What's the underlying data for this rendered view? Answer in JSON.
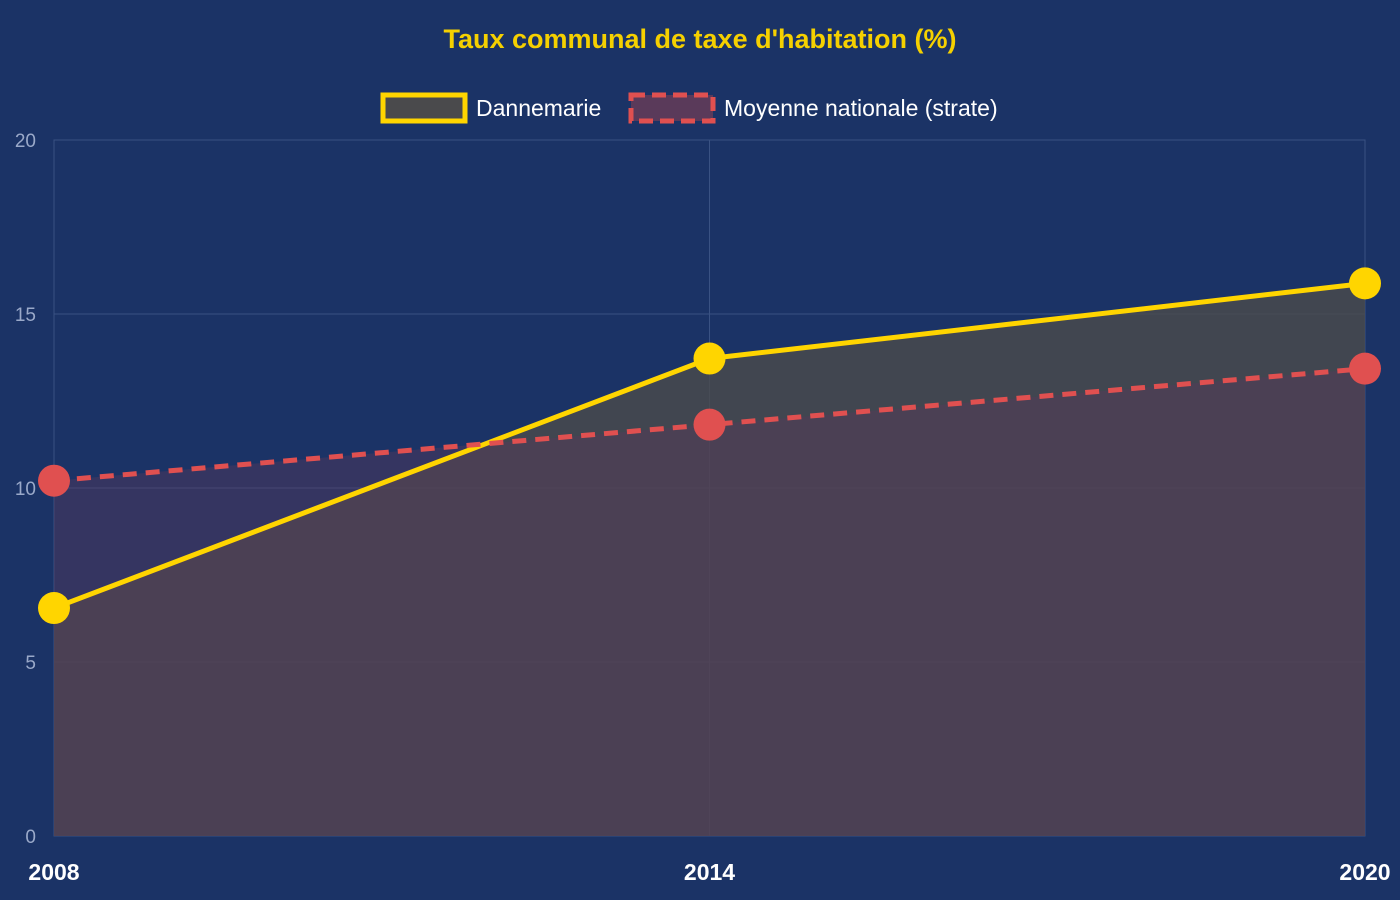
{
  "colors": {
    "background": "#1b3366",
    "title": "#f5d000",
    "grid": "#3a5283",
    "series_dannemarie": "#ffd500",
    "series_moyenne": "#e05050",
    "fill_dannemarie": "#4a4a4c",
    "fill_moyenne": "#5a3a5a"
  },
  "chart_data": {
    "type": "line",
    "title": "Taux communal de taxe d'habitation (%)",
    "xlabel": "",
    "ylabel": "",
    "x": [
      "2008",
      "2014",
      "2020"
    ],
    "ylim": [
      0,
      20
    ],
    "yticks": [
      0,
      5,
      10,
      15,
      20
    ],
    "grid": true,
    "legend_position": "top-center",
    "series": [
      {
        "name": "Dannemarie",
        "values": [
          6.55,
          13.72,
          15.88
        ],
        "style": "solid",
        "fill": true
      },
      {
        "name": "Moyenne nationale (strate)",
        "values": [
          10.21,
          11.82,
          13.43
        ],
        "style": "dashed",
        "fill": true
      }
    ]
  }
}
